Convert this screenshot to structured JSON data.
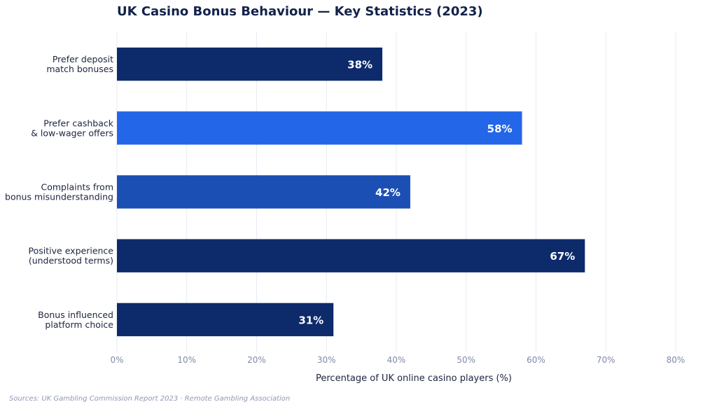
{
  "chart_data": {
    "type": "bar",
    "orientation": "horizontal",
    "title": "UK Casino Bonus Behaviour — Key Statistics (2023)",
    "xlabel": "Percentage of UK online casino players (%)",
    "ylabel": "",
    "xlim": [
      0,
      80
    ],
    "x_ticks": [
      "0%",
      "10%",
      "20%",
      "30%",
      "40%",
      "50%",
      "60%",
      "70%",
      "80%"
    ],
    "grid": "vertical",
    "categories": [
      [
        "Prefer deposit",
        "match bonuses"
      ],
      [
        "Prefer cashback",
        "& low-wager offers"
      ],
      [
        "Complaints from",
        "bonus misunderstanding"
      ],
      [
        "Positive experience",
        "(understood terms)"
      ],
      [
        "Bonus influenced",
        "platform choice"
      ]
    ],
    "values": [
      38,
      58,
      42,
      67,
      31
    ],
    "data_labels": [
      "38%",
      "58%",
      "42%",
      "67%",
      "31%"
    ],
    "bar_colors": [
      "#0d2a6b",
      "#2466e8",
      "#1c4fb3",
      "#0d2a6b",
      "#0d2a6b"
    ]
  },
  "footer": {
    "source": "Sources: UK Gambling Commission Report 2023 · Remote Gambling Association"
  }
}
